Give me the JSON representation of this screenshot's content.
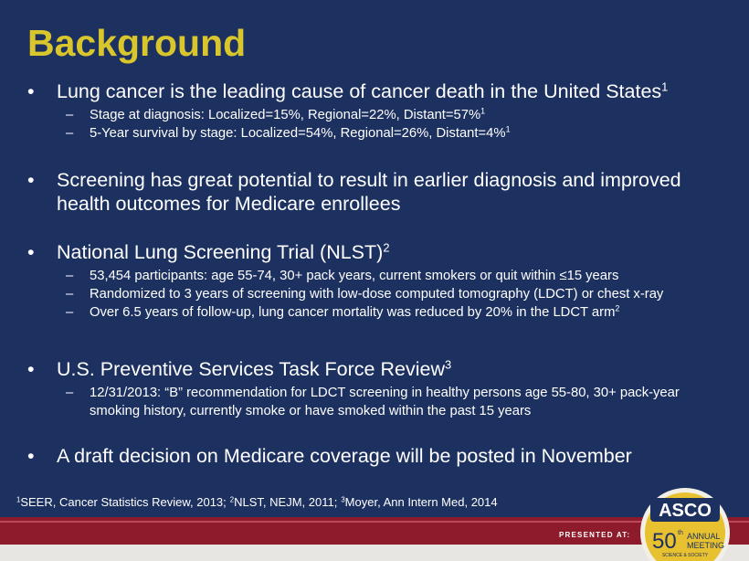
{
  "title": "Background",
  "bullets": [
    {
      "text": "Lung cancer is the leading cause of cancer death in the United States",
      "sup": "1",
      "subs": [
        {
          "text": "Stage at diagnosis: Localized=15%, Regional=22%, Distant=57%",
          "sup": "1"
        },
        {
          "text": "5-Year survival by stage: Localized=54%, Regional=26%, Distant=4%",
          "sup": "1"
        }
      ]
    },
    {
      "text": "Screening has great potential to result in earlier diagnosis and improved health outcomes for Medicare enrollees",
      "subs": []
    },
    {
      "text": "National Lung Screening Trial (NLST)",
      "sup": "2",
      "subs": [
        {
          "text": "53,454 participants: age 55-74, 30+ pack years, current smokers or quit within ≤15 years"
        },
        {
          "text": "Randomized to 3 years of screening with low-dose computed tomography (LDCT) or chest x-ray"
        },
        {
          "text": "Over 6.5 years of follow-up, lung cancer mortality was reduced by 20% in the LDCT arm",
          "sup": "2"
        }
      ]
    },
    {
      "text": "U.S. Preventive Services Task Force Review",
      "sup": "3",
      "subs": [
        {
          "text": "12/31/2013: “B” recommendation for LDCT screening in healthy persons age 55-80, 30+ pack-year smoking history, currently smoke or have smoked within the past 15 years"
        }
      ]
    },
    {
      "text": "A draft decision on Medicare coverage will be posted in November",
      "subs": []
    }
  ],
  "footnotes": [
    {
      "sup": "1",
      "text": "SEER, Cancer Statistics Review, 2013;"
    },
    {
      "sup": "2",
      "text": "NLST, NEJM, 2011;"
    },
    {
      "sup": "3",
      "text": "Moyer, Ann Intern Med, 2014"
    }
  ],
  "presented_at": "PRESENTED AT:",
  "logo": {
    "name": "ASCO",
    "number": "50",
    "ordinal": "th",
    "line1": "ANNUAL",
    "line2": "MEETING",
    "tagline": "SCIENCE & SOCIETY"
  }
}
